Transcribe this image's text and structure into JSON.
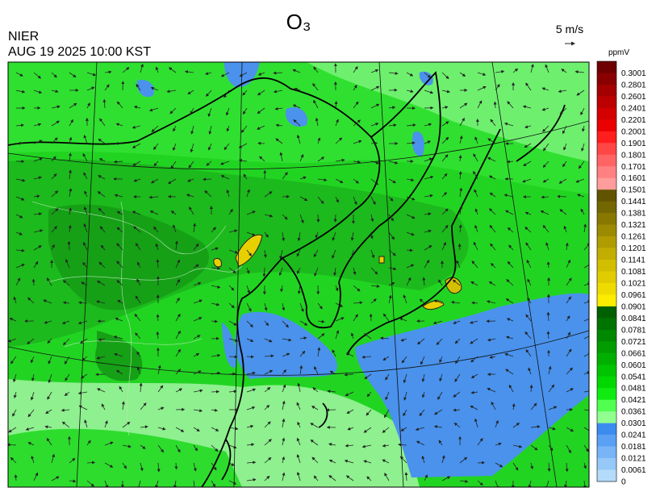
{
  "header": {
    "title": "O₃",
    "agency": "NIER",
    "timestamp": "AUG 19 2025 10:00 KST",
    "wind_scale": "5 m/s"
  },
  "colorbar": {
    "unit": "ppmV",
    "ticks": [
      0.3001,
      0.2801,
      0.2601,
      0.2401,
      0.2201,
      0.2001,
      0.1901,
      0.1801,
      0.1701,
      0.1601,
      0.1501,
      0.1441,
      0.1381,
      0.1321,
      0.1261,
      0.1201,
      0.1141,
      0.1081,
      0.1021,
      0.0961,
      0.0901,
      0.0841,
      0.0781,
      0.0721,
      0.0661,
      0.0601,
      0.0541,
      0.0481,
      0.0421,
      0.0361,
      0.0301,
      0.0241,
      0.0181,
      0.0121,
      0.0061,
      0
    ],
    "colors": [
      "#6e0000",
      "#8a0000",
      "#a40000",
      "#bc0000",
      "#d40000",
      "#ea0000",
      "#ff1e1e",
      "#ff4646",
      "#ff6464",
      "#ff8080",
      "#ff9c9c",
      "#605400",
      "#746600",
      "#887800",
      "#9c8a00",
      "#b09c00",
      "#c2ae00",
      "#d2be00",
      "#e0cc00",
      "#eedc00",
      "#fcec00",
      "#006000",
      "#007400",
      "#008800",
      "#009c00",
      "#00b000",
      "#00c400",
      "#00d800",
      "#10ec10",
      "#50ff50",
      "#90ff90",
      "#3c8cf0",
      "#5aa0f4",
      "#78b4f6",
      "#96c8f8",
      "#b4dcfa"
    ]
  }
}
